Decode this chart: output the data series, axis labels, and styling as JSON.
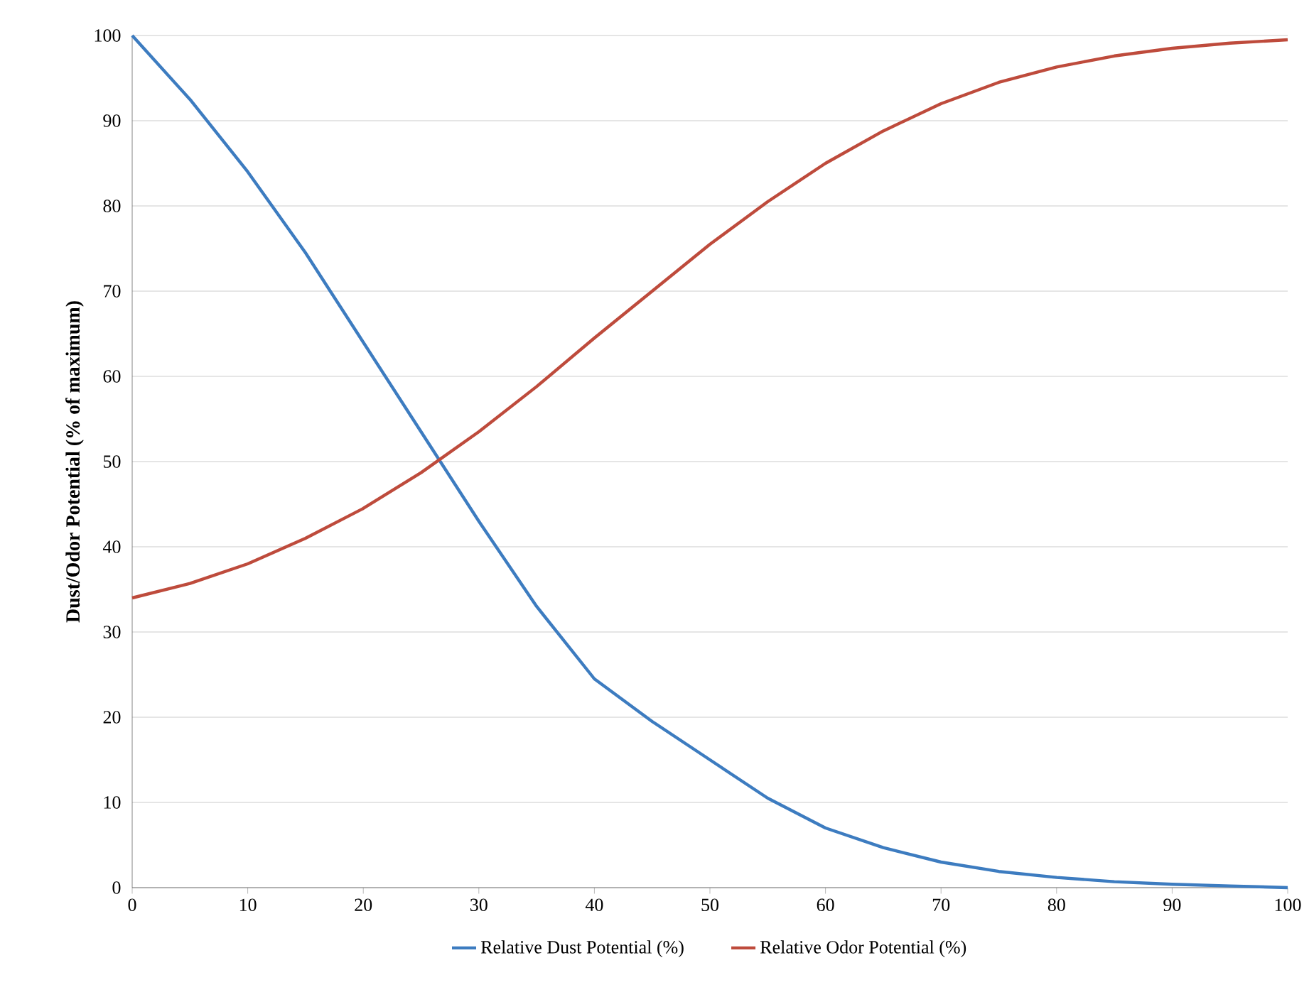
{
  "chart_data": {
    "type": "line",
    "ylabel": "Dust/Odor Potential (% of maximum)",
    "x": [
      0,
      5,
      10,
      15,
      20,
      25,
      30,
      35,
      40,
      45,
      50,
      55,
      60,
      65,
      70,
      75,
      80,
      85,
      90,
      95,
      100
    ],
    "series": [
      {
        "name": "Relative Dust Potential (%)",
        "color": "#3d7cc0",
        "values": [
          100,
          92.5,
          84,
          74.5,
          64,
          53.5,
          43,
          33,
          24.5,
          19.5,
          15,
          10.5,
          7,
          4.7,
          3,
          1.9,
          1.2,
          0.7,
          0.4,
          0.2,
          0
        ]
      },
      {
        "name": "Relative Odor Potential (%)",
        "color": "#be4b3c",
        "values": [
          34,
          35.7,
          38,
          41,
          44.5,
          48.7,
          53.5,
          58.8,
          64.5,
          70,
          75.5,
          80.5,
          85,
          88.8,
          92,
          94.5,
          96.3,
          97.6,
          98.5,
          99.1,
          99.5
        ]
      }
    ],
    "xlim": [
      0,
      100
    ],
    "xticks": [
      0,
      10,
      20,
      30,
      40,
      50,
      60,
      70,
      80,
      90,
      100
    ],
    "ylim": [
      0,
      100
    ],
    "yticks": [
      0,
      10,
      20,
      30,
      40,
      50,
      60,
      70,
      80,
      90,
      100
    ],
    "grid": "y",
    "legend": "bottom",
    "marker": "none",
    "line_style": "solid"
  }
}
